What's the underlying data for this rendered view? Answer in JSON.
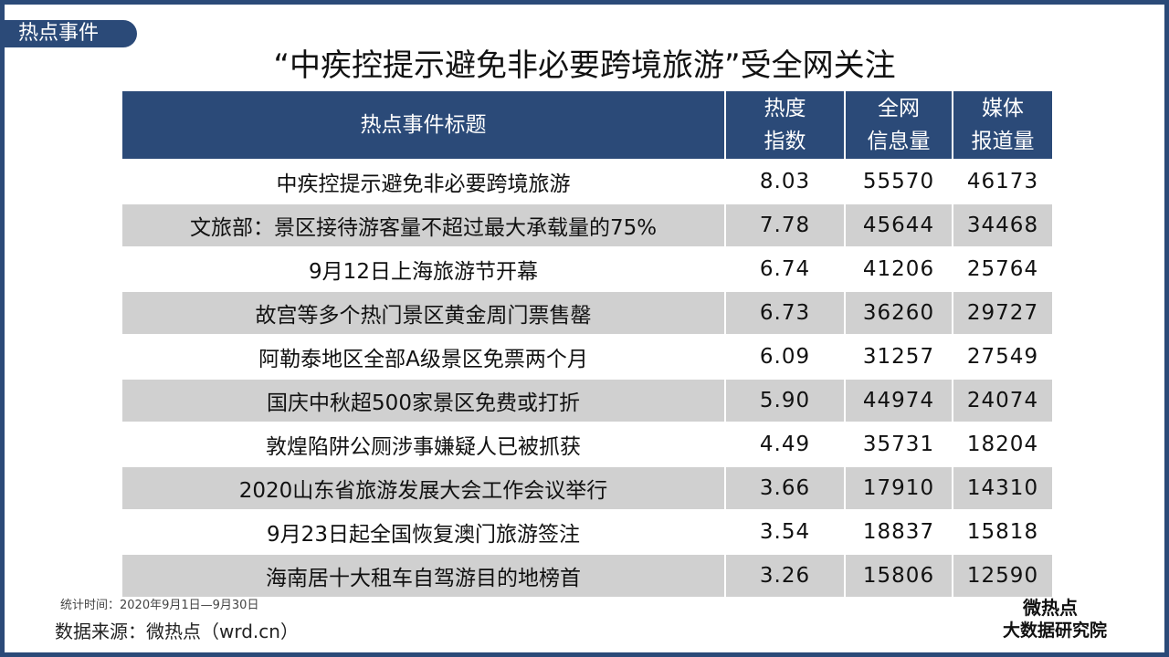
{
  "tag": "热点事件",
  "title": "“中疾控提示避免非必要跨境旅游”受全网关注",
  "table": {
    "header": [
      [
        "热点事件标题"
      ],
      [
        "热度",
        "指数"
      ],
      [
        "全网",
        "信息量"
      ],
      [
        "媒体",
        "报道量"
      ]
    ],
    "rows": [
      [
        "中疾控提示避免非必要跨境旅游",
        "8.03",
        "55570",
        "46173"
      ],
      [
        "文旅部：景区接待游客量不超过最大承载量的75%",
        "7.78",
        "45644",
        "34468"
      ],
      [
        "9月12日上海旅游节开幕",
        "6.74",
        "41206",
        "25764"
      ],
      [
        "故宫等多个热门景区黄金周门票售罄",
        "6.73",
        "36260",
        "29727"
      ],
      [
        "阿勒泰地区全部A级景区免票两个月",
        "6.09",
        "31257",
        "27549"
      ],
      [
        "国庆中秋超500家景区免费或打折",
        "5.90",
        "44974",
        "24074"
      ],
      [
        "敦煌陷阱公厕涉事嫌疑人已被抓获",
        "4.49",
        "35731",
        "18204"
      ],
      [
        "2020山东省旅游发展大会工作会议举行",
        "3.66",
        "17910",
        "14310"
      ],
      [
        "9月23日起全国恢复澳门旅游签注",
        "3.54",
        "18837",
        "15818"
      ],
      [
        "海南居十大租车自驾游目的地榜首",
        "3.26",
        "15806",
        "12590"
      ]
    ]
  },
  "footer": {
    "note": "统计时间：2020年9月1日—9月30日",
    "source": "数据来源：微热点（wrd.cn）"
  },
  "logo": {
    "line1": "微热点",
    "line2": "大数据研究院"
  }
}
